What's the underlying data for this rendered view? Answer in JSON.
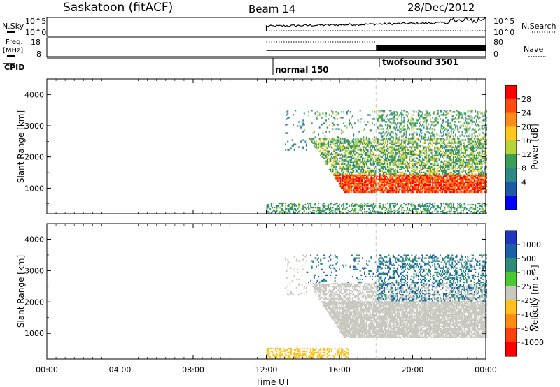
{
  "header": {
    "station": "Saskatoon (fitACF)",
    "beam": "Beam 14",
    "date": "28/Dec/2012"
  },
  "control_panels": {
    "nsky": {
      "label": "N.Sky",
      "right_label": "N.Search",
      "left_ticks": [
        "10^5",
        "10^0"
      ],
      "right_ticks": [
        "10^5",
        "10^0"
      ]
    },
    "freq": {
      "label_line1": "Freq.",
      "label_line2": "[MHz]",
      "right_label": "Nave",
      "left_ticks": [
        "18",
        "8"
      ],
      "right_ticks": [
        "80",
        "0"
      ]
    },
    "cpid": {
      "label": "CPID",
      "modes": [
        {
          "name": "normal 150",
          "start_hour": 12
        },
        {
          "name": "twofsound 3501",
          "start_hour": 18
        }
      ]
    }
  },
  "colorbars": {
    "power": {
      "label": "Power [dB]",
      "ticks": [
        "28",
        "24",
        "20",
        "16",
        "12",
        "8",
        "4"
      ],
      "colors": [
        "#ff0000",
        "#ff4a10",
        "#ff8c1a",
        "#ffc61e",
        "#b6d43a",
        "#3c9e54",
        "#2f8888",
        "#1e5aa8",
        "#0000ff"
      ]
    },
    "velocity": {
      "label": "Velocity [m s⁻¹]",
      "ticks": [
        "1000",
        "500",
        "100",
        "25",
        "-25",
        "-100",
        "-500",
        "-1000"
      ],
      "colors": [
        "#2038c0",
        "#1c60a8",
        "#2e8c78",
        "#4cc832",
        "#c8c8c0",
        "#ffc020",
        "#ff8c10",
        "#ff4010",
        "#ff0000"
      ]
    }
  },
  "chart_data": {
    "type": "heatmap",
    "xlabel": "Time UT",
    "x_ticks": [
      "00:00",
      "04:00",
      "08:00",
      "12:00",
      "16:00",
      "20:00",
      "00:00"
    ],
    "x_range_hours": [
      0,
      24
    ],
    "panels": [
      {
        "name": "power",
        "ylabel": "Slant Range [km]",
        "y_ticks": [
          "4000",
          "3000",
          "2000",
          "1000"
        ],
        "ylim": [
          180,
          4500
        ],
        "unit": "dB",
        "features": [
          {
            "region": "ground scatter",
            "time_hours": [
              12.0,
              24.0
            ],
            "range_km": [
              180,
              500
            ],
            "value_db": [
              4,
              12
            ]
          },
          {
            "region": "main echo band",
            "time_hours": [
              14.0,
              24.0
            ],
            "range_km": [
              700,
              1400
            ],
            "value_db": [
              20,
              32
            ]
          },
          {
            "region": "upper echo band",
            "time_hours": [
              13.5,
              24.0
            ],
            "range_km": [
              1400,
              2600
            ],
            "value_db": [
              4,
              16
            ]
          },
          {
            "region": "sparse far range",
            "time_hours": [
              13.0,
              24.0
            ],
            "range_km": [
              2600,
              3500
            ],
            "value_db": [
              4,
              12
            ]
          }
        ]
      },
      {
        "name": "velocity",
        "ylabel": "Slant Range [km]",
        "y_ticks": [
          "4000",
          "3000",
          "2000",
          "1000"
        ],
        "ylim": [
          180,
          4500
        ],
        "unit": "m/s",
        "features": [
          {
            "region": "near range",
            "time_hours": [
              12.0,
              16.0
            ],
            "range_km": [
              180,
              500
            ],
            "value_ms": [
              -100,
              -25
            ]
          },
          {
            "region": "main band",
            "time_hours": [
              13.5,
              24.0
            ],
            "range_km": [
              700,
              2400
            ],
            "value_ms": [
              -25,
              25
            ]
          },
          {
            "region": "upper band",
            "time_hours": [
              18.0,
              24.0
            ],
            "range_km": [
              1600,
              3500
            ],
            "value_ms": [
              100,
              1000
            ]
          }
        ]
      }
    ],
    "mode_change_hour": 18
  }
}
